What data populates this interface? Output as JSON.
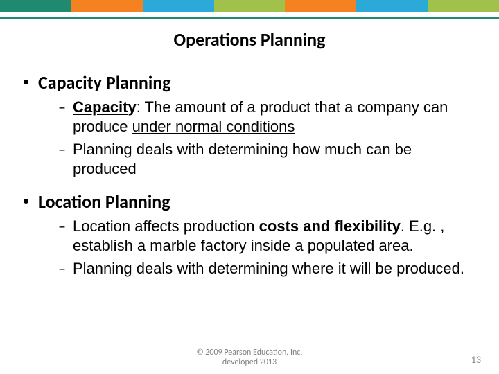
{
  "theme": {
    "segment_colors": [
      "#1f8a70",
      "#f58220",
      "#2ba9d9",
      "#a0c24b",
      "#f58220",
      "#2ba9d9",
      "#a0c24b"
    ],
    "rule_color": "#1f8a70",
    "bullet_dot_color": "#000000",
    "title_fontsize": 26,
    "l1_fontsize": 26,
    "l2_fontsize": 22,
    "footer_fontsize": 12,
    "pagenum_fontsize": 14
  },
  "title": "Operations Planning",
  "sections": [
    {
      "heading": "Capacity Planning",
      "items": [
        {
          "term": "Capacity",
          "term_underline_partial": true,
          "after_term": ": The amount of a product that a company can produce ",
          "underlined_tail": "under normal conditions"
        },
        {
          "plain": "Planning deals with determining how much can be produced"
        }
      ]
    },
    {
      "heading": "Location Planning",
      "items": [
        {
          "pre": "Location affects production ",
          "bold": "costs and flexibility",
          "post": ". E.g. , establish a marble factory inside a populated area."
        },
        {
          "plain": "Planning deals with determining where it will be produced."
        }
      ]
    }
  ],
  "footer": {
    "line1": "© 2009 Pearson Education, Inc.",
    "line2": "developed 2013"
  },
  "page_number": "13"
}
